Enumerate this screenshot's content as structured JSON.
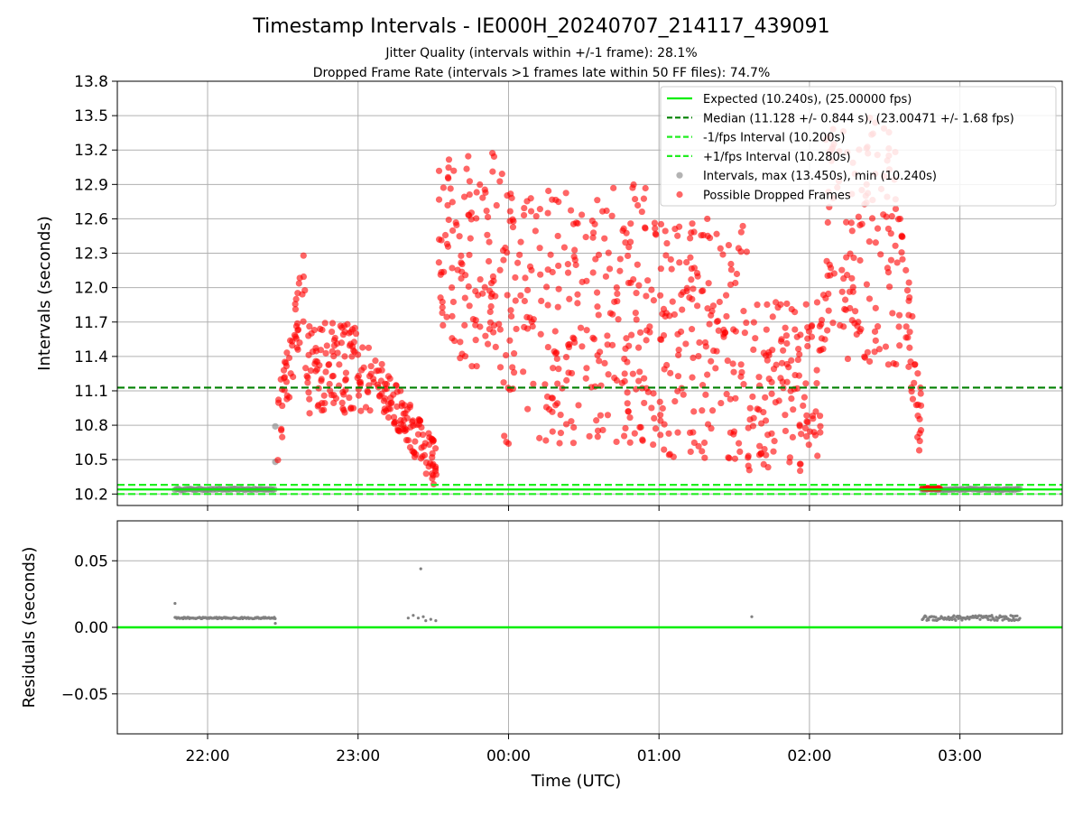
{
  "title": "Timestamp Intervals - IE000H_20240707_214117_439091",
  "subtitle_1": "Jitter Quality (intervals within +/-1 frame): 28.1%",
  "subtitle_2": "Dropped Frame Rate (intervals >1 frames late within 50 FF files): 74.7%",
  "colors": {
    "expected": "#00ee00",
    "median": "#008000",
    "fps_bounds": "#22ee22",
    "intervals": "#808080",
    "dropped": "#ff0000",
    "grid": "#b0b0b0"
  },
  "chart_data": [
    {
      "type": "scatter",
      "ylabel": "Intervals (seconds)",
      "ylim": [
        10.1,
        13.8
      ],
      "yticks": [
        "10.2",
        "10.5",
        "10.8",
        "11.1",
        "11.4",
        "11.7",
        "12.0",
        "12.3",
        "12.6",
        "12.9",
        "13.2",
        "13.5",
        "13.8"
      ],
      "xlim_hours": [
        21.4,
        27.68
      ],
      "grid": true,
      "legend_position": "top-right",
      "legend": [
        "Expected (10.240s), (25.00000 fps)",
        "Median (11.128 +/- 0.844 s), (23.00471 +/- 1.68 fps)",
        "-1/fps Interval (10.200s)",
        "+1/fps Interval (10.280s)",
        "Intervals, max (13.450s), min (10.240s)",
        "Possible Dropped Frames"
      ],
      "reference_lines": {
        "expected": 10.24,
        "median": 11.128,
        "minus_one_frame": 10.2,
        "plus_one_frame": 10.28
      },
      "series": [
        {
          "name": "Intervals, max (13.450s), min (10.240s)",
          "segments": [
            {
              "x_start": "21:47",
              "x_end": "22:27",
              "y": 10.24
            },
            {
              "x_start": "02:45",
              "x_end": "03:24",
              "y": 10.24
            }
          ],
          "points": [
            {
              "x": "22:27",
              "y": 10.79
            },
            {
              "x": "22:27",
              "y": 10.48
            }
          ]
        },
        {
          "name": "Possible Dropped Frames",
          "clusters": [
            {
              "x_start": "22:28",
              "x_end": "22:39",
              "y_min": 10.45,
              "y_max": 12.3,
              "trend": "rising"
            },
            {
              "x_start": "22:39",
              "x_end": "23:05",
              "y_min": 10.9,
              "y_max": 11.7,
              "trend": "flat"
            },
            {
              "x_start": "23:05",
              "x_end": "23:32",
              "y_min": 10.25,
              "y_max": 11.4,
              "trend": "falling"
            },
            {
              "x_start": "23:32",
              "x_end": "23:58",
              "y_min": 11.3,
              "y_max": 13.2,
              "trend": "high"
            },
            {
              "x_start": "23:58",
              "x_end": "00:55",
              "y_min": 10.6,
              "y_max": 12.9,
              "trend": "scattered"
            },
            {
              "x_start": "00:55",
              "x_end": "01:35",
              "y_min": 10.5,
              "y_max": 12.6,
              "trend": "scattered"
            },
            {
              "x_start": "01:35",
              "x_end": "02:05",
              "y_min": 10.4,
              "y_max": 11.9,
              "trend": "scattered"
            },
            {
              "x_start": "02:05",
              "x_end": "02:36",
              "y_min": 11.3,
              "y_max": 13.5,
              "trend": "high"
            },
            {
              "x_start": "02:36",
              "x_end": "02:45",
              "y_min": 10.3,
              "y_max": 12.6,
              "trend": "falling"
            },
            {
              "x_start": "02:45",
              "x_end": "02:52",
              "y_min": 10.25,
              "y_max": 10.25,
              "trend": "flat"
            }
          ]
        }
      ]
    },
    {
      "type": "scatter",
      "xlabel": "Time (UTC)",
      "ylabel": "Residuals (seconds)",
      "ylim": [
        -0.08,
        0.08
      ],
      "yticks": [
        "−0.05",
        "0.00",
        "0.05"
      ],
      "xticks": [
        "22:00",
        "23:00",
        "00:00",
        "01:00",
        "02:00",
        "03:00"
      ],
      "grid": true,
      "zero_line": 0.0,
      "series": [
        {
          "name": "Residuals",
          "segments": [
            {
              "x_start": "21:47",
              "x_end": "22:27",
              "y": 0.007
            },
            {
              "x_start": "02:45",
              "x_end": "03:24",
              "y": 0.007
            }
          ],
          "points": [
            {
              "x": "21:47",
              "y": 0.018
            },
            {
              "x": "22:27",
              "y": 0.003
            },
            {
              "x": "23:20",
              "y": 0.007
            },
            {
              "x": "23:22",
              "y": 0.009
            },
            {
              "x": "23:24",
              "y": 0.007
            },
            {
              "x": "23:26",
              "y": 0.008
            },
            {
              "x": "23:27",
              "y": 0.005
            },
            {
              "x": "23:29",
              "y": 0.006
            },
            {
              "x": "23:31",
              "y": 0.005
            },
            {
              "x": "23:25",
              "y": 0.044
            },
            {
              "x": "01:37",
              "y": 0.008
            }
          ]
        }
      ]
    }
  ]
}
